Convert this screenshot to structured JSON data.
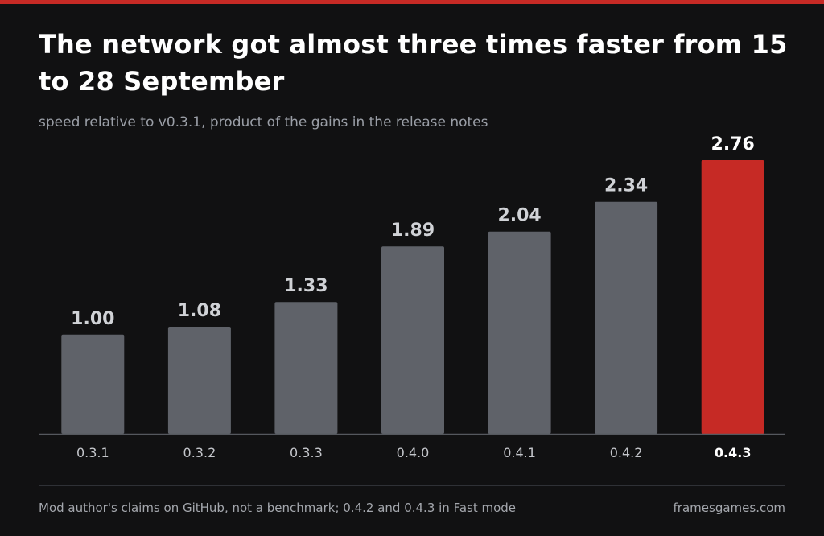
{
  "colors": {
    "background": "#111112",
    "accent": "#c62a25",
    "bar": "#5f6269",
    "bar_label": "#d0d2d6",
    "tick_label": "#c4c6cb",
    "highlight_label": "#ffffff",
    "baseline": "#55585e"
  },
  "chart_data": {
    "type": "bar",
    "title": "The network got almost three times faster from 15 to 28 September",
    "subtitle": "speed relative to v0.3.1, product of the gains in the release notes",
    "xlabel": "",
    "ylabel": "",
    "categories": [
      "0.3.1",
      "0.3.2",
      "0.3.3",
      "0.4.0",
      "0.4.1",
      "0.4.2",
      "0.4.3"
    ],
    "values": [
      1.0,
      1.08,
      1.33,
      1.89,
      2.04,
      2.34,
      2.76
    ],
    "value_labels": [
      "1.00",
      "1.08",
      "1.33",
      "1.89",
      "2.04",
      "2.34",
      "2.76"
    ],
    "highlight_index": 6,
    "ylim": [
      0,
      2.76
    ],
    "grid": false,
    "legend": "none"
  },
  "footer": {
    "note": "Mod author's claims on GitHub, not a benchmark; 0.4.2 and 0.4.3 in Fast mode",
    "source": "framesgames.com"
  }
}
